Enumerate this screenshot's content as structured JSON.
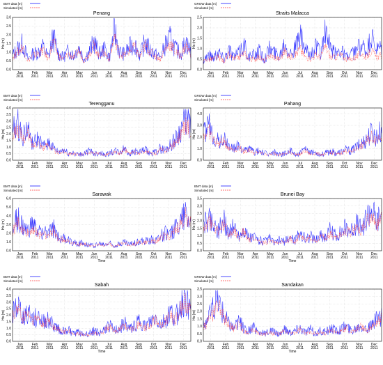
{
  "colors": {
    "observed": "#1a1aff",
    "simulated": "#ff4040",
    "frame": "#000000",
    "grid": "#c8c8c8"
  },
  "months": [
    {
      "m": "Jan",
      "y": "2011"
    },
    {
      "m": "Feb",
      "y": "2011"
    },
    {
      "m": "Mar",
      "y": "2011"
    },
    {
      "m": "Apr",
      "y": "2011"
    },
    {
      "m": "May",
      "y": "2011"
    },
    {
      "m": "Jun",
      "y": "2011"
    },
    {
      "m": "Jul",
      "y": "2011"
    },
    {
      "m": "Aug",
      "y": "2011"
    },
    {
      "m": "Sep",
      "y": "2011"
    },
    {
      "m": "Oct",
      "y": "2011"
    },
    {
      "m": "Nov",
      "y": "2011"
    },
    {
      "m": "Dec",
      "y": "2011"
    }
  ],
  "chart_data": [
    {
      "type": "line",
      "title": "Penang",
      "xlabel": "",
      "ylabel": "Hs (m)",
      "legend": [
        "BMT data [m]",
        "Simulated [m]"
      ],
      "ylim": [
        0,
        3.0
      ],
      "yticks": [
        "0.0",
        "0.5",
        "1.0",
        "1.5",
        "2.0",
        "2.5",
        "3.0"
      ],
      "xlim": [
        "2011-01-01",
        "2011-12-31"
      ],
      "grid": true,
      "legend_position": "top-left",
      "series": [
        {
          "name": "BMT data [m]",
          "values": [
            0.8,
            1.2,
            1.5,
            0.6,
            0.9,
            1.0,
            1.3,
            0.7,
            1.9,
            0.9,
            0.7,
            1.1,
            0.8,
            1.3,
            0.6,
            1.0,
            1.6,
            0.9,
            1.2,
            0.7,
            2.3,
            1.0,
            0.9,
            1.3,
            1.5,
            0.8,
            1.6,
            1.1,
            0.9,
            0.7,
            1.4,
            1.8,
            1.2,
            0.9,
            1.6,
            1.0
          ]
        },
        {
          "name": "Simulated [m]",
          "values": [
            0.7,
            1.0,
            1.3,
            0.5,
            0.8,
            0.9,
            1.1,
            0.6,
            1.6,
            0.8,
            0.6,
            0.9,
            0.7,
            1.1,
            0.5,
            0.9,
            1.4,
            0.8,
            1.0,
            0.6,
            1.9,
            0.9,
            0.8,
            1.1,
            1.3,
            0.7,
            1.4,
            1.0,
            0.8,
            0.6,
            1.2,
            1.5,
            1.0,
            0.8,
            1.4,
            0.9
          ]
        }
      ]
    },
    {
      "type": "line",
      "title": "Straits Malacca",
      "xlabel": "",
      "ylabel": "Hs (m)",
      "legend": [
        "GROW data [m]",
        "Simulated [m]"
      ],
      "ylim": [
        0,
        2.5
      ],
      "yticks": [
        "0.0",
        "0.5",
        "1.0",
        "1.5",
        "2.0",
        "2.5"
      ],
      "xlim": [
        "2011-01-01",
        "2011-12-31"
      ],
      "grid": true,
      "legend_position": "top-left",
      "series": [
        {
          "name": "GROW data [m]",
          "values": [
            0.5,
            0.7,
            0.6,
            0.9,
            0.5,
            1.0,
            0.6,
            0.8,
            1.2,
            0.6,
            0.7,
            0.9,
            0.5,
            1.0,
            0.8,
            0.7,
            1.4,
            0.8,
            1.0,
            1.6,
            0.9,
            0.7,
            1.1,
            0.8,
            1.8,
            0.9,
            0.8,
            1.0,
            0.6,
            0.7,
            0.9,
            1.2,
            0.8,
            1.5,
            0.9,
            1.0
          ]
        },
        {
          "name": "Simulated [m]",
          "values": [
            0.4,
            0.5,
            0.5,
            0.6,
            0.4,
            0.7,
            0.5,
            0.6,
            0.8,
            0.5,
            0.5,
            0.6,
            0.4,
            0.7,
            0.6,
            0.5,
            0.9,
            0.6,
            0.7,
            1.0,
            0.6,
            0.5,
            0.7,
            0.6,
            1.1,
            0.6,
            0.6,
            0.7,
            0.5,
            0.5,
            0.6,
            0.8,
            0.6,
            0.9,
            0.6,
            0.7
          ]
        }
      ]
    },
    {
      "type": "line",
      "title": "Terengganu",
      "xlabel": "",
      "ylabel": "Hs (m)",
      "legend": [
        "BMT data [m]",
        "Simulated [m]"
      ],
      "ylim": [
        0,
        4.0
      ],
      "yticks": [
        "0.0",
        "0.5",
        "1.0",
        "1.5",
        "2.0",
        "2.5",
        "3.0",
        "3.5",
        "4.0"
      ],
      "xlim": [
        "2011-01-01",
        "2011-12-31"
      ],
      "grid": true,
      "legend_position": "top-left",
      "series": [
        {
          "name": "BMT data [m]",
          "values": [
            2.2,
            2.8,
            1.8,
            2.4,
            1.2,
            1.6,
            1.0,
            1.4,
            0.9,
            0.6,
            0.8,
            0.5,
            0.6,
            0.4,
            0.5,
            0.7,
            0.5,
            0.6,
            0.4,
            0.5,
            0.7,
            0.6,
            0.9,
            0.5,
            0.7,
            0.6,
            0.8,
            0.5,
            0.6,
            0.9,
            0.8,
            1.2,
            1.6,
            2.4,
            3.2,
            2.6
          ]
        },
        {
          "name": "Simulated [m]",
          "values": [
            1.9,
            2.4,
            1.6,
            2.0,
            1.1,
            1.4,
            0.9,
            1.2,
            0.8,
            0.5,
            0.7,
            0.5,
            0.5,
            0.4,
            0.5,
            0.6,
            0.5,
            0.5,
            0.4,
            0.5,
            0.6,
            0.5,
            0.8,
            0.5,
            0.6,
            0.5,
            0.7,
            0.5,
            0.5,
            0.8,
            0.7,
            1.0,
            1.4,
            2.0,
            2.7,
            2.3
          ]
        }
      ]
    },
    {
      "type": "line",
      "title": "Pahang",
      "xlabel": "",
      "ylabel": "Hs (m)",
      "legend": [
        "GROW data [m]",
        "Simulated [m]"
      ],
      "ylim": [
        0,
        4.5
      ],
      "yticks": [
        "0.0",
        "1.0",
        "2.0",
        "3.0",
        "4.0"
      ],
      "xlim": [
        "2011-01-01",
        "2011-12-31"
      ],
      "grid": true,
      "legend_position": "top-left",
      "series": [
        {
          "name": "GROW data [m]",
          "values": [
            2.2,
            3.0,
            2.0,
            1.6,
            1.8,
            1.2,
            1.0,
            1.3,
            0.8,
            1.0,
            0.7,
            0.8,
            0.6,
            0.5,
            0.7,
            0.5,
            0.6,
            0.8,
            0.5,
            0.6,
            0.9,
            0.6,
            0.7,
            0.5,
            0.6,
            0.8,
            0.6,
            0.7,
            0.9,
            0.8,
            1.1,
            1.4,
            1.8,
            2.4,
            2.0,
            2.6
          ]
        },
        {
          "name": "Simulated [m]",
          "values": [
            2.0,
            2.6,
            1.8,
            1.4,
            1.6,
            1.1,
            0.9,
            1.1,
            0.7,
            0.9,
            0.6,
            0.7,
            0.5,
            0.5,
            0.6,
            0.5,
            0.5,
            0.7,
            0.5,
            0.5,
            0.8,
            0.5,
            0.6,
            0.5,
            0.5,
            0.7,
            0.5,
            0.6,
            0.8,
            0.7,
            1.0,
            1.2,
            1.6,
            2.1,
            1.8,
            2.3
          ]
        }
      ]
    },
    {
      "type": "line",
      "title": "Sarawak",
      "xlabel": "Time",
      "ylabel": "Hs (m)",
      "legend": [
        "BMT data [m]",
        "Simulated [m]"
      ],
      "ylim": [
        0,
        6.0
      ],
      "yticks": [
        "0.0",
        "1.0",
        "2.0",
        "3.0",
        "4.0",
        "5.0",
        "6.0"
      ],
      "xlim": [
        "2011-01-01",
        "2011-12-31"
      ],
      "grid": true,
      "legend_position": "top-left",
      "series": [
        {
          "name": "BMT data [m]",
          "values": [
            2.4,
            3.8,
            2.6,
            2.2,
            3.0,
            2.0,
            2.4,
            1.8,
            2.6,
            1.6,
            1.4,
            1.2,
            1.0,
            0.8,
            0.9,
            0.7,
            0.6,
            0.8,
            0.7,
            0.9,
            0.6,
            0.8,
            1.0,
            0.7,
            0.9,
            1.1,
            1.0,
            1.4,
            1.2,
            1.6,
            2.0,
            1.8,
            2.6,
            3.6,
            4.6,
            3.4
          ]
        },
        {
          "name": "Simulated [m]",
          "values": [
            2.1,
            3.3,
            2.3,
            2.0,
            2.6,
            1.8,
            2.1,
            1.6,
            2.3,
            1.4,
            1.3,
            1.1,
            0.9,
            0.7,
            0.8,
            0.6,
            0.5,
            0.7,
            0.6,
            0.8,
            0.5,
            0.7,
            0.9,
            0.6,
            0.8,
            1.0,
            0.9,
            1.2,
            1.1,
            1.4,
            1.8,
            1.6,
            2.3,
            3.1,
            4.0,
            3.0
          ]
        }
      ]
    },
    {
      "type": "line",
      "title": "Brunei Bay",
      "xlabel": "Time",
      "ylabel": "Hs (m)",
      "legend": [
        "BMT data [m]",
        "Simulated [m]"
      ],
      "ylim": [
        0,
        3.5
      ],
      "yticks": [
        "0.0",
        "0.5",
        "1.0",
        "1.5",
        "2.0",
        "2.5",
        "3.0",
        "3.5"
      ],
      "xlim": [
        "2011-01-01",
        "2011-12-31"
      ],
      "grid": true,
      "legend_position": "top-left",
      "series": [
        {
          "name": "BMT data [m]",
          "values": [
            1.6,
            2.2,
            1.8,
            1.4,
            2.0,
            1.2,
            1.6,
            1.0,
            1.4,
            0.8,
            0.9,
            0.7,
            0.6,
            0.8,
            0.5,
            0.7,
            0.6,
            0.9,
            0.7,
            1.2,
            0.8,
            1.0,
            0.7,
            1.1,
            0.9,
            1.4,
            1.0,
            1.2,
            1.6,
            1.3,
            1.8,
            1.4,
            2.2,
            2.8,
            1.9,
            2.4
          ]
        },
        {
          "name": "Simulated [m]",
          "values": [
            1.5,
            2.0,
            1.6,
            1.3,
            1.8,
            1.1,
            1.4,
            0.9,
            1.3,
            0.7,
            0.8,
            0.6,
            0.5,
            0.7,
            0.5,
            0.6,
            0.5,
            0.8,
            0.6,
            1.0,
            0.7,
            0.9,
            0.6,
            1.0,
            0.8,
            1.2,
            0.9,
            1.1,
            1.4,
            1.2,
            1.6,
            1.3,
            1.9,
            2.4,
            1.7,
            2.1
          ]
        }
      ]
    },
    {
      "type": "line",
      "title": "Sabah",
      "xlabel": "Time",
      "ylabel": "Hs (m)",
      "legend": [
        "BMT data [m]",
        "Simulated [m]"
      ],
      "ylim": [
        0,
        4.0
      ],
      "yticks": [
        "0.0",
        "0.5",
        "1.0",
        "1.5",
        "2.0",
        "2.5",
        "3.0",
        "3.5",
        "4.0"
      ],
      "xlim": [
        "2011-01-01",
        "2011-12-31"
      ],
      "grid": true,
      "legend_position": "top-left",
      "series": [
        {
          "name": "BMT data [m]",
          "values": [
            2.0,
            2.8,
            1.8,
            2.4,
            1.6,
            2.0,
            1.4,
            1.8,
            1.2,
            1.0,
            0.8,
            0.9,
            0.6,
            0.7,
            0.5,
            0.6,
            0.8,
            0.6,
            0.9,
            1.2,
            0.8,
            1.0,
            1.4,
            0.9,
            1.2,
            1.6,
            1.1,
            1.4,
            1.8,
            1.3,
            1.6,
            2.2,
            1.8,
            2.8,
            3.4,
            2.4
          ]
        },
        {
          "name": "Simulated [m]",
          "values": [
            1.8,
            2.5,
            1.7,
            2.2,
            1.5,
            1.8,
            1.3,
            1.6,
            1.1,
            0.9,
            0.7,
            0.8,
            0.5,
            0.6,
            0.5,
            0.5,
            0.7,
            0.5,
            0.8,
            1.1,
            0.7,
            0.9,
            1.3,
            0.8,
            1.1,
            1.4,
            1.0,
            1.3,
            1.6,
            1.2,
            1.5,
            2.0,
            1.6,
            2.5,
            3.0,
            2.2
          ]
        }
      ]
    },
    {
      "type": "line",
      "title": "Sandakan",
      "xlabel": "Time",
      "ylabel": "Hs (m)",
      "legend": [
        "GROW data [m]",
        "Simulated [m]"
      ],
      "ylim": [
        0,
        3.5
      ],
      "yticks": [
        "0.0",
        "0.5",
        "1.0",
        "1.5",
        "2.0",
        "2.5",
        "3.0",
        "3.5"
      ],
      "xlim": [
        "2011-01-01",
        "2011-12-31"
      ],
      "grid": true,
      "legend_position": "top-left",
      "series": [
        {
          "name": "GROW data [m]",
          "values": [
            1.0,
            1.6,
            2.2,
            2.8,
            1.8,
            1.2,
            0.9,
            1.4,
            0.8,
            0.7,
            0.9,
            0.6,
            0.5,
            0.7,
            0.6,
            0.5,
            0.8,
            0.6,
            0.7,
            0.9,
            0.6,
            0.8,
            0.5,
            0.7,
            0.6,
            0.9,
            0.7,
            0.8,
            1.0,
            0.7,
            0.9,
            1.1,
            0.8,
            1.0,
            1.4,
            1.8
          ]
        },
        {
          "name": "Simulated [m]",
          "values": [
            0.9,
            1.4,
            1.9,
            2.4,
            1.6,
            1.1,
            0.8,
            1.2,
            0.7,
            0.6,
            0.8,
            0.5,
            0.5,
            0.6,
            0.5,
            0.5,
            0.7,
            0.5,
            0.6,
            0.8,
            0.5,
            0.7,
            0.5,
            0.6,
            0.5,
            0.8,
            0.6,
            0.7,
            0.9,
            0.6,
            0.8,
            1.0,
            0.7,
            0.9,
            1.2,
            1.6
          ]
        }
      ]
    }
  ]
}
